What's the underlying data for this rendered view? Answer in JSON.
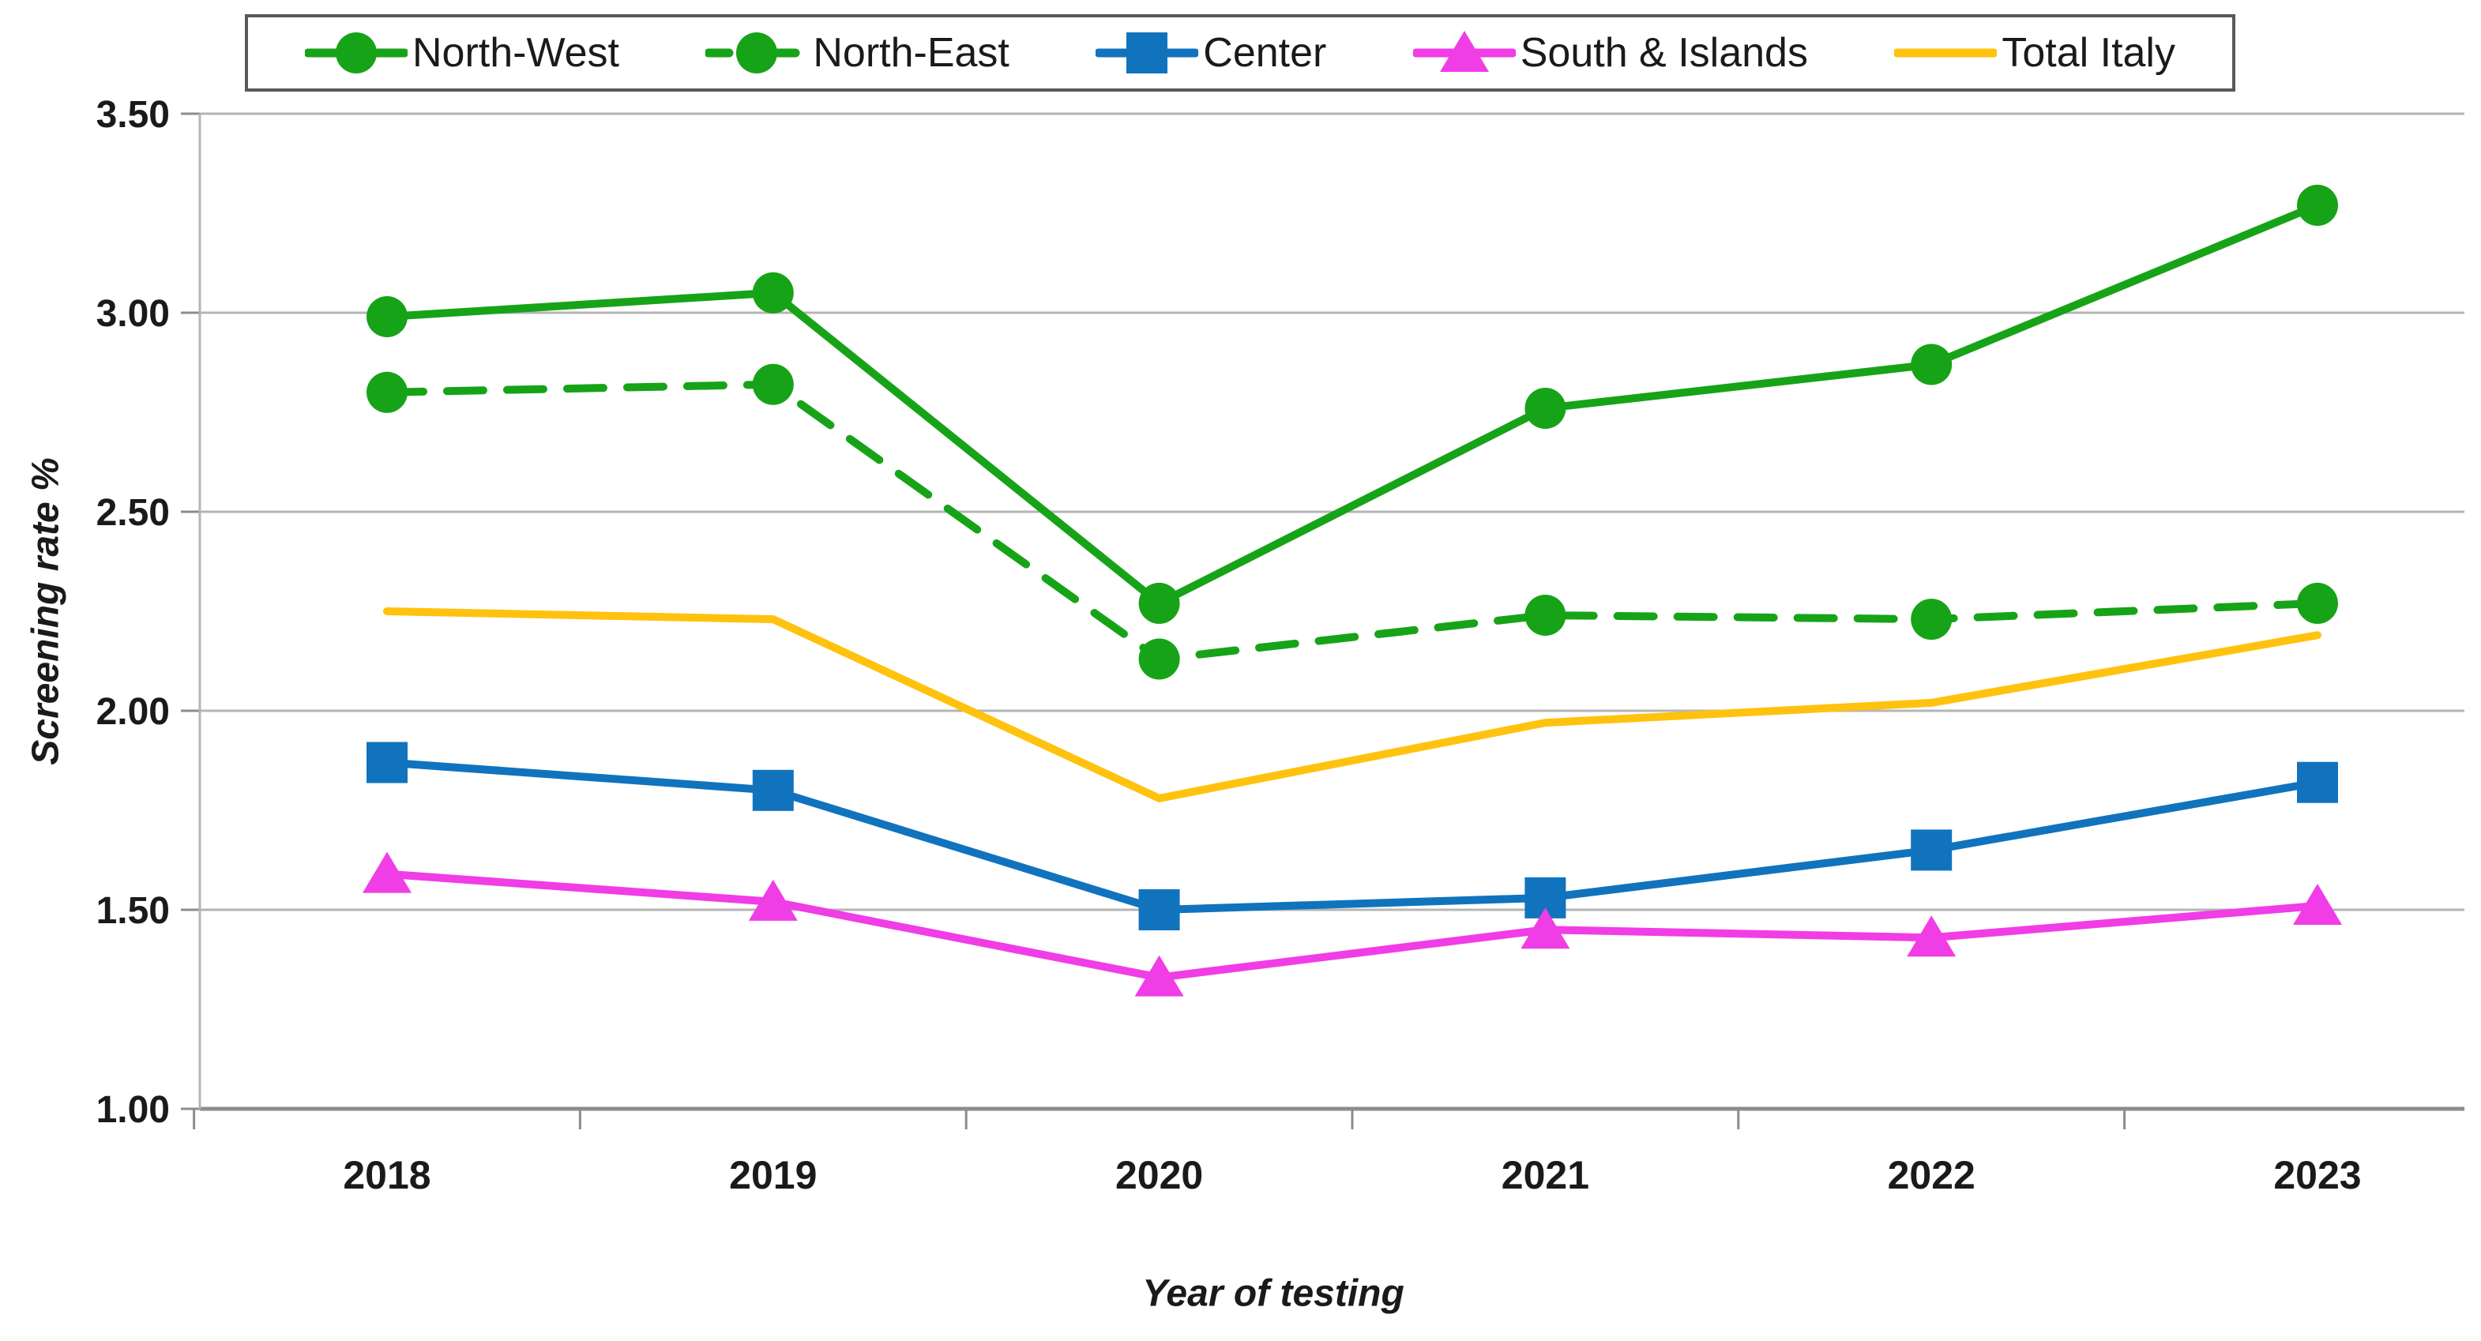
{
  "chart_data": {
    "type": "line",
    "x": [
      "2018",
      "2019",
      "2020",
      "2021",
      "2022",
      "2023"
    ],
    "series": [
      {
        "name": "North-West",
        "values": [
          2.99,
          3.05,
          2.27,
          2.76,
          2.87,
          3.27
        ],
        "color": "#17A317",
        "marker": "circle",
        "line": "solid"
      },
      {
        "name": "North-East",
        "values": [
          2.8,
          2.82,
          2.13,
          2.24,
          2.23,
          2.27
        ],
        "color": "#17A317",
        "marker": "circle",
        "line": "dashed"
      },
      {
        "name": "Center",
        "values": [
          1.87,
          1.8,
          1.5,
          1.53,
          1.65,
          1.82
        ],
        "color": "#1173BD",
        "marker": "square",
        "line": "solid"
      },
      {
        "name": "South & Islands",
        "values": [
          1.59,
          1.52,
          1.33,
          1.45,
          1.43,
          1.51
        ],
        "color": "#F03DE6",
        "marker": "triangle",
        "line": "solid"
      },
      {
        "name": "Total Italy",
        "values": [
          2.25,
          2.23,
          1.78,
          1.97,
          2.02,
          2.19
        ],
        "color": "#FFC20E",
        "marker": "none",
        "line": "solid"
      }
    ],
    "title": "",
    "xlabel": "Year of testing",
    "ylabel": "Screening rate %",
    "ylim": [
      1.0,
      3.5
    ],
    "yticks": [
      1.0,
      1.5,
      2.0,
      2.5,
      3.0,
      3.5
    ],
    "ytick_format_decimals": 2,
    "grid": true,
    "legend_position": "top",
    "colors": {
      "gridline": "#B5B5B5",
      "axis": "#8C8C8C",
      "tick_text": "#1a1a1a"
    }
  }
}
